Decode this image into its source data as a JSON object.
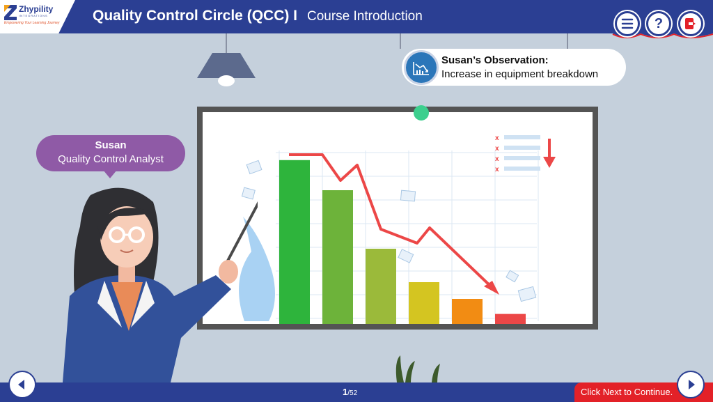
{
  "header": {
    "logo_name": "Zhypility",
    "logo_sub": "INTEGRATIONS",
    "logo_tagline": "Empowering Your Learning Journey",
    "course_title": "Quality Control Circle (QCC) I",
    "course_subtitle": "Course Introduction",
    "buttons": [
      {
        "name": "menu-button",
        "icon": "hamburger-icon"
      },
      {
        "name": "help-button",
        "icon": "question-icon",
        "label": "?"
      },
      {
        "name": "exit-button",
        "icon": "exit-icon"
      }
    ]
  },
  "observation": {
    "title": "Susan’s Observation:",
    "text": "Increase in equipment breakdown",
    "icon": "declining-chart-icon"
  },
  "speaker": {
    "name": "Susan",
    "role": "Quality Control Analyst"
  },
  "board_chart": {
    "bar_colors": [
      "#2eb43c",
      "#6db33a",
      "#9bba3a",
      "#d4c521",
      "#f28c13",
      "#ec4747"
    ],
    "relative_levels": [
      0.98,
      0.8,
      0.45,
      0.25,
      0.15,
      0.06
    ],
    "trend_color": "#ec4747"
  },
  "footer": {
    "page_current": "1",
    "page_total": "/52",
    "next_hint": "Click Next to Continue."
  },
  "colors": {
    "primary": "#2b3f93",
    "accent_red": "#e32128",
    "speech": "#8f5aa6",
    "background": "#c5d0dc"
  }
}
